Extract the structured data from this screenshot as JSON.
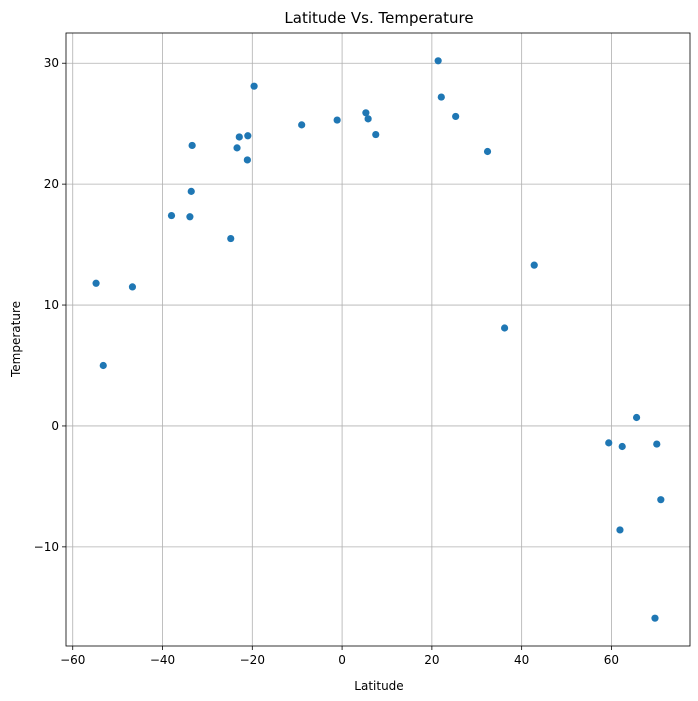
{
  "chart_data": {
    "type": "scatter",
    "title": "Latitude Vs. Temperature",
    "xlabel": "Latitude",
    "ylabel": "Temperature",
    "xlim": [
      -61.5,
      77.5
    ],
    "ylim": [
      -18.2,
      32.5
    ],
    "xticks": [
      -60,
      -40,
      -20,
      0,
      20,
      40,
      60
    ],
    "yticks": [
      -10,
      0,
      10,
      20,
      30
    ],
    "grid": true,
    "marker_color": "#1f77b4",
    "points": [
      {
        "x": -54.8,
        "y": 11.8
      },
      {
        "x": -53.2,
        "y": 5.0
      },
      {
        "x": -46.7,
        "y": 11.5
      },
      {
        "x": -38.0,
        "y": 17.4
      },
      {
        "x": -33.9,
        "y": 17.3
      },
      {
        "x": -33.6,
        "y": 19.4
      },
      {
        "x": -33.4,
        "y": 23.2
      },
      {
        "x": -24.8,
        "y": 15.5
      },
      {
        "x": -23.4,
        "y": 23.0
      },
      {
        "x": -22.9,
        "y": 23.9
      },
      {
        "x": -21.1,
        "y": 22.0
      },
      {
        "x": -21.0,
        "y": 24.0
      },
      {
        "x": -19.6,
        "y": 28.1
      },
      {
        "x": -9.0,
        "y": 24.9
      },
      {
        "x": -1.1,
        "y": 25.3
      },
      {
        "x": 5.3,
        "y": 25.9
      },
      {
        "x": 5.8,
        "y": 25.4
      },
      {
        "x": 7.5,
        "y": 24.1
      },
      {
        "x": 21.4,
        "y": 30.2
      },
      {
        "x": 22.1,
        "y": 27.2
      },
      {
        "x": 25.3,
        "y": 25.6
      },
      {
        "x": 32.4,
        "y": 22.7
      },
      {
        "x": 36.2,
        "y": 8.1
      },
      {
        "x": 42.8,
        "y": 13.3
      },
      {
        "x": 59.4,
        "y": -1.4
      },
      {
        "x": 61.9,
        "y": -8.6
      },
      {
        "x": 62.4,
        "y": -1.7
      },
      {
        "x": 65.6,
        "y": 0.7
      },
      {
        "x": 69.7,
        "y": -15.9
      },
      {
        "x": 70.1,
        "y": -1.5
      },
      {
        "x": 71.0,
        "y": -6.1
      }
    ]
  }
}
